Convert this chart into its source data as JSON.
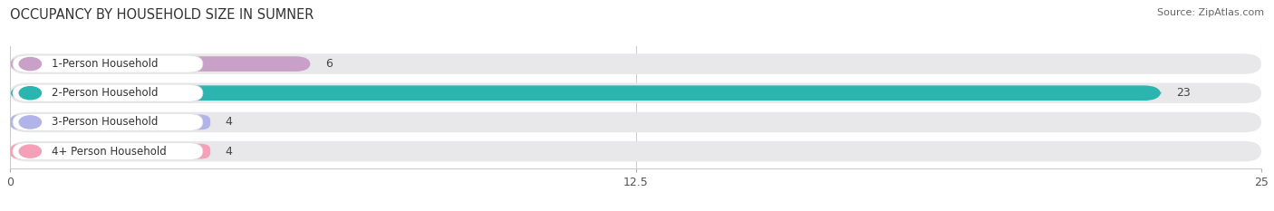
{
  "title": "OCCUPANCY BY HOUSEHOLD SIZE IN SUMNER",
  "source": "Source: ZipAtlas.com",
  "categories": [
    "1-Person Household",
    "2-Person Household",
    "3-Person Household",
    "4+ Person Household"
  ],
  "values": [
    6,
    23,
    4,
    4
  ],
  "bar_colors": [
    "#c9a0c8",
    "#2ab5b0",
    "#b0b4e8",
    "#f4a0b8"
  ],
  "bar_bg_color": "#e8e8ea",
  "xlim": [
    0,
    25
  ],
  "xticks": [
    0,
    12.5,
    25
  ],
  "bg_color": "#ffffff",
  "title_fontsize": 10.5,
  "source_fontsize": 8,
  "tick_fontsize": 9,
  "bar_label_fontsize": 9,
  "category_fontsize": 8.5,
  "figsize": [
    14.06,
    2.33
  ],
  "dpi": 100
}
